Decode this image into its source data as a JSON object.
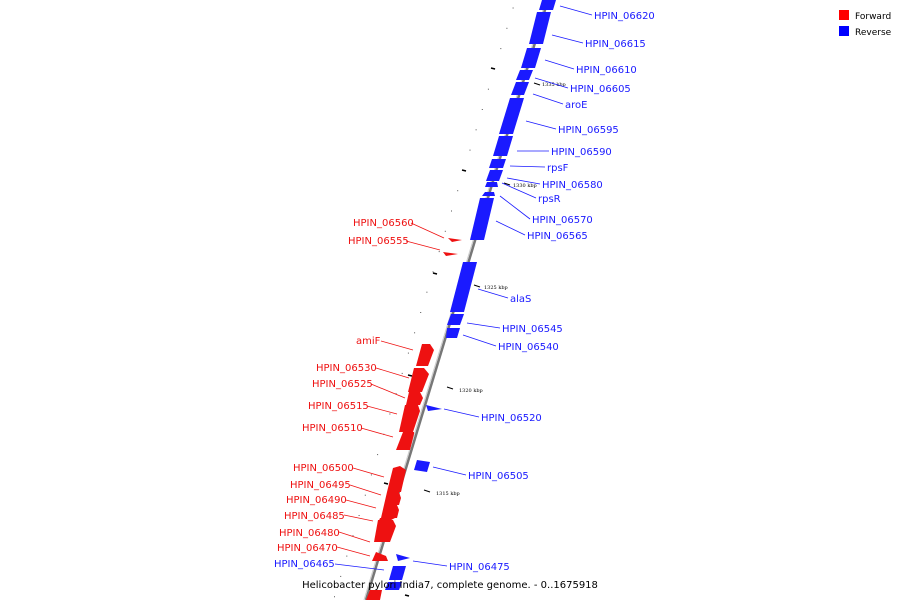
{
  "caption": "Helicobacter pylori India7, complete genome. - 0..1675918",
  "legend": [
    {
      "label": "Forward",
      "color": "#ff0000"
    },
    {
      "label": "Reverse",
      "color": "#0000ff"
    }
  ],
  "colors": {
    "forward": "#ff0000",
    "reverse": "#0000ff",
    "backbone": "#888888",
    "tick": "#000000"
  },
  "kbp_labels": [
    "1335 kbp",
    "1330 kbp",
    "1325 kbp",
    "1320 kbp",
    "1315 kbp"
  ],
  "reverse_genes": [
    "HPIN_06620",
    "HPIN_06615",
    "HPIN_06610",
    "HPIN_06605",
    "aroE",
    "HPIN_06595",
    "HPIN_06590",
    "rpsF",
    "HPIN_06580",
    "rpsR",
    "HPIN_06570",
    "HPIN_06565",
    "alaS",
    "HPIN_06545",
    "HPIN_06540",
    "HPIN_06520",
    "HPIN_06505",
    "HPIN_06475",
    "HPIN_06465"
  ],
  "forward_genes": [
    "HPIN_06560",
    "HPIN_06555",
    "amiF",
    "HPIN_06530",
    "HPIN_06525",
    "HPIN_06515",
    "HPIN_06510",
    "HPIN_06500",
    "HPIN_06495",
    "HPIN_06490",
    "HPIN_06485",
    "HPIN_06480",
    "HPIN_06470"
  ]
}
